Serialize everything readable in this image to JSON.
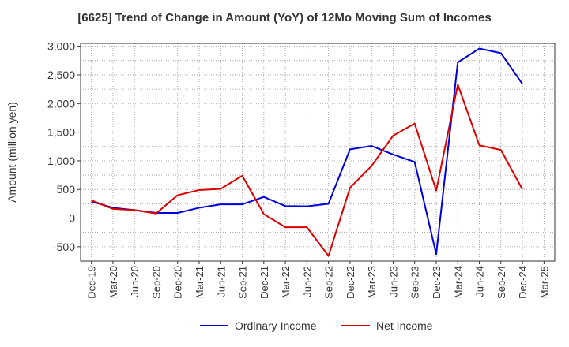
{
  "chart_data": {
    "type": "line",
    "title": "[6625]  Trend of Change in Amount (YoY) of 12Mo Moving Sum of Incomes",
    "ylabel": "Amount (million yen)",
    "xlabel": "",
    "ylim": [
      -750,
      3050
    ],
    "yticks": [
      -500,
      0,
      500,
      1000,
      1500,
      2000,
      2500,
      3000
    ],
    "ytick_labels": [
      "-500",
      "0",
      "500",
      "1,000",
      "1,500",
      "2,000",
      "2,500",
      "3,000"
    ],
    "x": [
      "Dec-19",
      "Mar-20",
      "Jun-20",
      "Sep-20",
      "Dec-20",
      "Mar-21",
      "Jun-21",
      "Sep-21",
      "Dec-21",
      "Mar-22",
      "Jun-22",
      "Sep-22",
      "Dec-22",
      "Mar-23",
      "Jun-23",
      "Sep-23",
      "Dec-23",
      "Mar-24",
      "Jun-24",
      "Sep-24",
      "Dec-24",
      "Mar-25"
    ],
    "grid": true,
    "legend_position": "bottom",
    "series": [
      {
        "name": "Ordinary Income",
        "color": "#0000dd",
        "values": [
          290,
          180,
          140,
          90,
          90,
          180,
          240,
          240,
          370,
          210,
          205,
          250,
          1200,
          1260,
          1110,
          980,
          -630,
          2720,
          2960,
          2880,
          2340,
          null
        ]
      },
      {
        "name": "Net Income",
        "color": "#dd0000",
        "values": [
          310,
          160,
          140,
          80,
          400,
          490,
          510,
          740,
          70,
          -160,
          -160,
          -660,
          530,
          910,
          1440,
          1650,
          480,
          2330,
          1270,
          1190,
          500,
          null
        ]
      }
    ]
  }
}
